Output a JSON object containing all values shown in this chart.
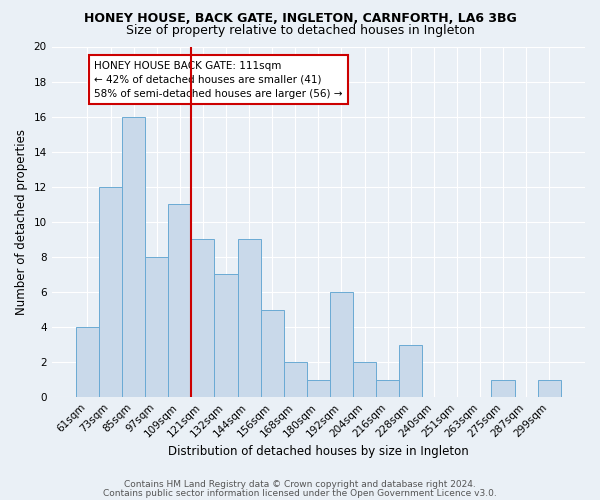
{
  "title1": "HONEY HOUSE, BACK GATE, INGLETON, CARNFORTH, LA6 3BG",
  "title2": "Size of property relative to detached houses in Ingleton",
  "xlabel": "Distribution of detached houses by size in Ingleton",
  "ylabel": "Number of detached properties",
  "categories": [
    "61sqm",
    "73sqm",
    "85sqm",
    "97sqm",
    "109sqm",
    "121sqm",
    "132sqm",
    "144sqm",
    "156sqm",
    "168sqm",
    "180sqm",
    "192sqm",
    "204sqm",
    "216sqm",
    "228sqm",
    "240sqm",
    "251sqm",
    "263sqm",
    "275sqm",
    "287sqm",
    "299sqm"
  ],
  "values": [
    4,
    12,
    16,
    8,
    11,
    9,
    7,
    9,
    5,
    2,
    1,
    6,
    2,
    1,
    3,
    0,
    0,
    0,
    1,
    0,
    1
  ],
  "bar_color": "#c9d9ea",
  "bar_edge_color": "#6aaad4",
  "vline_x_index": 5,
  "vline_color": "#cc0000",
  "annotation_text": "HONEY HOUSE BACK GATE: 111sqm\n← 42% of detached houses are smaller (41)\n58% of semi-detached houses are larger (56) →",
  "annotation_box_color": "#ffffff",
  "annotation_box_edge_color": "#cc0000",
  "ylim": [
    0,
    20
  ],
  "yticks": [
    0,
    2,
    4,
    6,
    8,
    10,
    12,
    14,
    16,
    18,
    20
  ],
  "footnote1": "Contains HM Land Registry data © Crown copyright and database right 2024.",
  "footnote2": "Contains public sector information licensed under the Open Government Licence v3.0.",
  "bg_color": "#eaf0f6",
  "plot_bg_color": "#eaf0f6",
  "grid_color": "#ffffff",
  "title1_fontsize": 9,
  "title2_fontsize": 9,
  "axis_label_fontsize": 8.5,
  "tick_fontsize": 7.5,
  "annotation_fontsize": 7.5,
  "footnote_fontsize": 6.5
}
